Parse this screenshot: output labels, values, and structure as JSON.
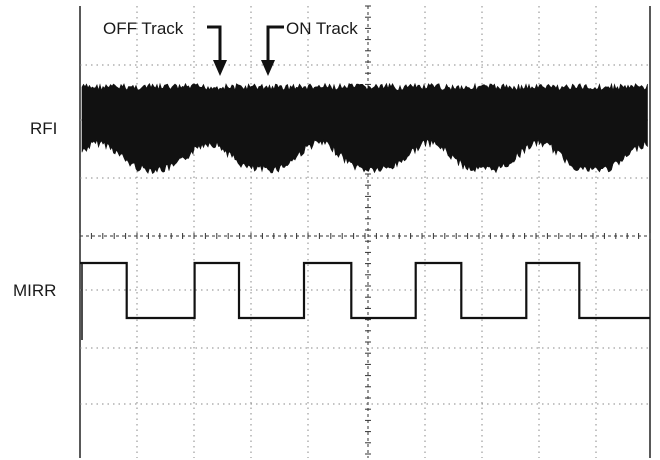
{
  "chart_data": {
    "type": "line",
    "title": "",
    "xlabel": "",
    "ylabel": "",
    "grid": true,
    "channels": [
      {
        "name": "RFI",
        "kind": "envelope",
        "upper_level": 0.92,
        "lower_level_on_track": 0.3,
        "lower_level_off_track": 0.0,
        "period_fraction_of_screen": 0.193,
        "troughs_x_fraction": [
          0.13,
          0.328,
          0.523,
          0.73,
          0.93
        ]
      },
      {
        "name": "MIRR",
        "kind": "square",
        "high_level": 1,
        "low_level": 0,
        "edges_x_fraction": [
          0.082,
          0.201,
          0.279,
          0.393,
          0.476,
          0.589,
          0.669,
          0.783,
          0.876
        ]
      }
    ],
    "annotations": [
      {
        "text": "OFF Track",
        "arrow": "down"
      },
      {
        "text": "ON Track",
        "arrow": "down"
      }
    ]
  }
}
